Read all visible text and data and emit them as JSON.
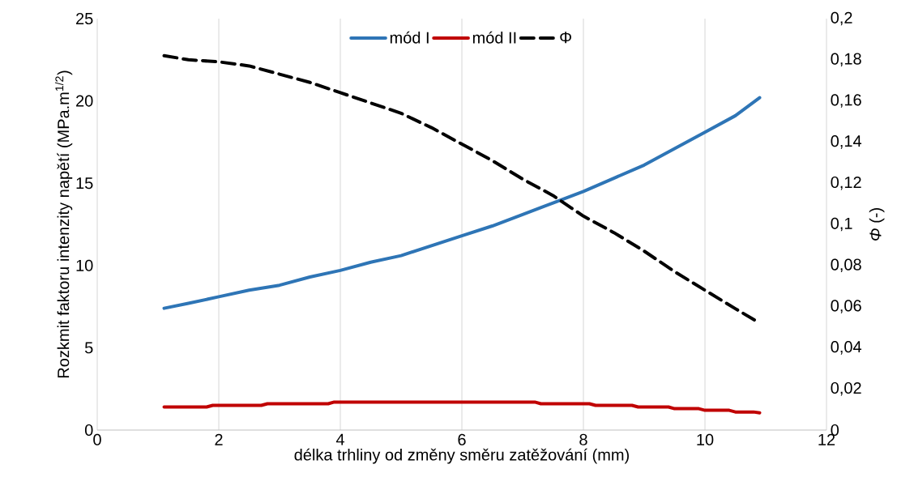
{
  "chart_data": {
    "type": "line",
    "xlabel": "délka trhliny od změny směru zatěžování (mm)",
    "ylabel": "Rozkmit faktoru intenzity napětí (MPa.m$^{1/2}$)",
    "y2label": "*Φ* (-)",
    "series": [
      {
        "name": "mód I",
        "color": "#2e75b6",
        "line_style": "solid",
        "x": [
          1.1,
          1.5,
          2,
          2.5,
          3,
          3.5,
          4,
          4.5,
          5,
          5.5,
          6,
          6.5,
          7,
          7.5,
          8,
          8.5,
          9,
          9.5,
          10,
          10.5,
          10.9
        ],
        "values": [
          7.4,
          7.7,
          8.1,
          8.5,
          8.8,
          9.3,
          9.7,
          10.2,
          10.6,
          11.2,
          11.8,
          12.4,
          13.1,
          13.8,
          14.5,
          15.3,
          16.1,
          17.1,
          18.1,
          19.1,
          20.2
        ]
      },
      {
        "name": "mód II",
        "color": "#c00000",
        "line_style": "solid",
        "x": [
          1.1,
          1.8,
          1.9,
          2.7,
          2.8,
          3.8,
          3.9,
          7.2,
          7.3,
          8.1,
          8.2,
          8.8,
          8.9,
          9.4,
          9.5,
          9.9,
          10,
          10.4,
          10.5,
          10.8,
          10.9
        ],
        "values": [
          1.4,
          1.4,
          1.5,
          1.5,
          1.6,
          1.6,
          1.7,
          1.7,
          1.6,
          1.6,
          1.5,
          1.5,
          1.4,
          1.4,
          1.3,
          1.3,
          1.2,
          1.2,
          1.1,
          1.1,
          1.05
        ]
      },
      {
        "name": "Φ",
        "color": "#000000",
        "line_style": "dashed",
        "axis": "y2",
        "x": [
          1.1,
          1.5,
          2,
          2.5,
          3,
          3.5,
          4,
          4.5,
          5,
          5.5,
          6,
          6.5,
          7,
          7.5,
          8,
          8.5,
          9,
          9.5,
          10,
          10.5,
          10.9
        ],
        "values": [
          0.182,
          0.18,
          0.179,
          0.177,
          0.173,
          0.169,
          0.164,
          0.159,
          0.154,
          0.147,
          0.139,
          0.131,
          0.122,
          0.114,
          0.104,
          0.096,
          0.087,
          0.077,
          0.068,
          0.059,
          0.052
        ]
      }
    ],
    "xlim": [
      0,
      12
    ],
    "xticks": [
      0,
      2,
      4,
      6,
      8,
      10,
      12
    ],
    "ylim": [
      0,
      25
    ],
    "yticks": [
      0,
      5,
      10,
      15,
      20,
      25
    ],
    "y2lim": [
      0,
      0.2
    ],
    "y2ticks": [
      0,
      {
        "value": 0.02,
        "label": "0,02"
      },
      {
        "value": 0.04,
        "label": "0,04"
      },
      {
        "value": 0.06,
        "label": "0,06"
      },
      {
        "value": 0.08,
        "label": "0,08"
      },
      {
        "value": 0.1,
        "label": "0,1"
      },
      {
        "value": 0.12,
        "label": "0,12"
      },
      {
        "value": 0.14,
        "label": "0,14"
      },
      {
        "value": 0.16,
        "label": "0,16"
      },
      {
        "value": 0.18,
        "label": "0,18"
      },
      {
        "value": 0.2,
        "label": "0,2"
      }
    ],
    "grid": "x",
    "legend": "top",
    "marker": "none"
  }
}
